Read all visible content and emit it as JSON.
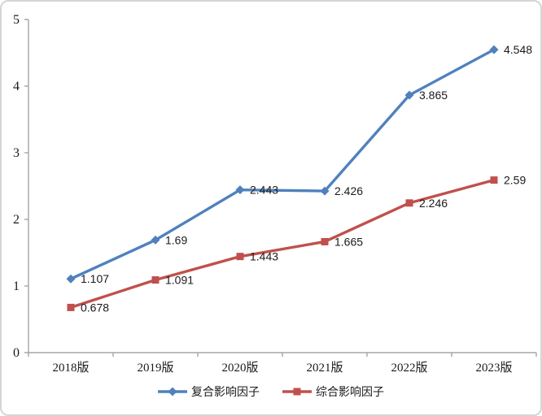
{
  "chart_data": {
    "type": "line",
    "categories": [
      "2018版",
      "2019版",
      "2020版",
      "2021版",
      "2022版",
      "2023版"
    ],
    "series": [
      {
        "name": "复合影响因子",
        "color": "#4F81BD",
        "marker": "diamond",
        "values": [
          1.107,
          1.69,
          2.443,
          2.426,
          3.865,
          4.548
        ],
        "labels": [
          "1.107",
          "1.69",
          "2.443",
          "2.426",
          "3.865",
          "4.548"
        ]
      },
      {
        "name": "综合影响因子",
        "color": "#C0504D",
        "marker": "square",
        "values": [
          0.678,
          1.091,
          1.443,
          1.665,
          2.246,
          2.59
        ],
        "labels": [
          "0.678",
          "1.091",
          "1.443",
          "1.665",
          "2.246",
          "2.59"
        ]
      }
    ],
    "title": "",
    "xlabel": "",
    "ylabel": "",
    "ylim": [
      0,
      5
    ],
    "ytick_interval": 1,
    "yticks": [
      "0",
      "1",
      "2",
      "3",
      "4",
      "5"
    ],
    "grid": false,
    "legend_position": "bottom",
    "axis_color": "#A6A6A6",
    "text_color": "#1a1a1a"
  }
}
